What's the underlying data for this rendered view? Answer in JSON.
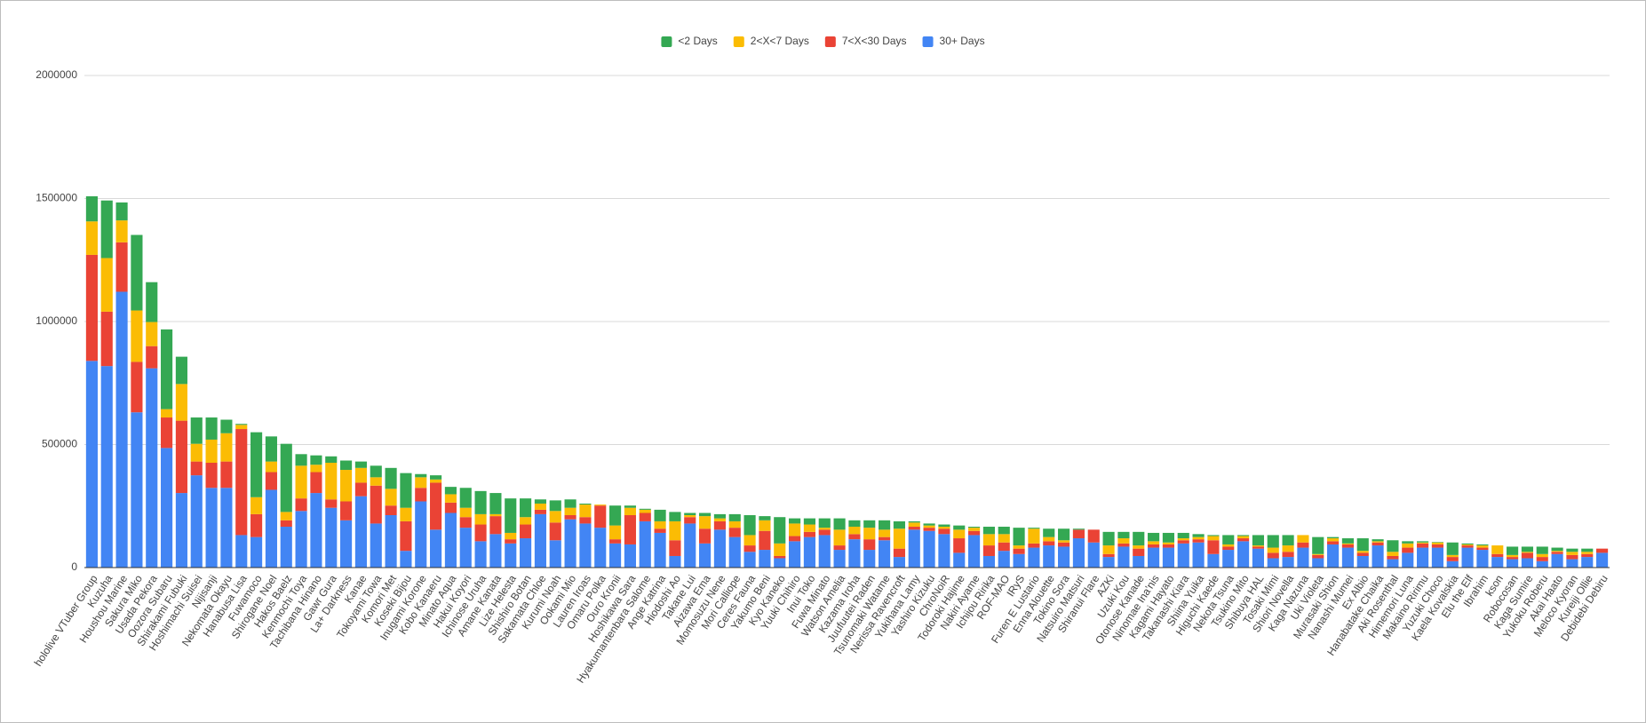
{
  "chart_data": {
    "type": "stacked_bar",
    "categories": [
      "hololive VTuber Group",
      "Kuzuha",
      "Houshou Marine",
      "Sakura Miko",
      "Usada Pekora",
      "Oozora Subaru",
      "Shirakami Fubuki",
      "Hoshimachi Suisei",
      "Nijisanji",
      "Nekomata Okayu",
      "Hanabusa Lisa",
      "Fuwamoco",
      "Shirogane Noel",
      "Hakos Baelz",
      "Kenmochi Toya",
      "Tachibana Hinano",
      "Gawr Gura",
      "La+ Darkness",
      "Kanae",
      "Tokoyami Towa",
      "Komori Met",
      "Koseki Bijou",
      "Inugami Korone",
      "Kobo Kanaeru",
      "Minato Aqua",
      "Hakui Koyori",
      "Ichinose Uruha",
      "Amane Kanata",
      "Lize Helesta",
      "Shishiro Botan",
      "Sakamata Chloe",
      "Kurumi Noah",
      "Ookami Mio",
      "Lauren Iroas",
      "Omaru Polka",
      "Ouro Kronii",
      "Hoshikawa Sara",
      "Hyakumantenbara Salome",
      "Ange Katrina",
      "Hiodoshi Ao",
      "Takane Lui",
      "Aizawa Ema",
      "Momosuzu Nene",
      "Mori Calliope",
      "Ceres Fauna",
      "Yakumo Beni",
      "Kyo Kaneko",
      "Yuuki Chihiro",
      "Inui Toko",
      "Fuwa Minato",
      "Watson Amelia",
      "Kazama Iroha",
      "Juufuutei Raden",
      "Tsunomaki Watame",
      "Nerissa Ravencroft",
      "Yukihana Lamy",
      "Yashiro Kizuku",
      "ChroNoiR",
      "Todoroki Hajime",
      "Nakiri Ayame",
      "Ichijou Ririka",
      "ROF-MAO",
      "IRyS",
      "Furen E Lustario",
      "Enna Alouette",
      "Tokino Sora",
      "Natsuiro Matsuri",
      "Shiranui Flare",
      "AZKi",
      "Uzuki Kou",
      "Otonose Kanade",
      "Ninomae Ina'nis",
      "Kagami Hayato",
      "Takanashi Kiara",
      "Shiina Yuika",
      "Higuchi Kaede",
      "Nekota Tsuna",
      "Tsukino Mito",
      "Shibuya HAL",
      "Tosaki Mimi",
      "Shiori Novella",
      "Kaga Nazuna",
      "Uki Violeta",
      "Murasaki Shion",
      "Nanashi Mumei",
      "Ex Albio",
      "Hanabatake Chaika",
      "Aki Rosenthal",
      "Himemori Luna",
      "Makaino Ririmu",
      "Yuzuki Choco",
      "Kaela Kovalskia",
      "Elu the Elf",
      "Ibrahim",
      "kson",
      "Robocosan",
      "Kaga Sumire",
      "Yukoku Roberu",
      "Akai Haato",
      "Meloco Kyoran",
      "Kureiji Ollie",
      "Debidebi Debiru"
    ],
    "series": [
      {
        "name": "<2 Days",
        "color": "#34a853",
        "values": [
          102000,
          234000,
          73000,
          307000,
          162000,
          324000,
          111000,
          107000,
          90000,
          55000,
          4000,
          264000,
          102000,
          277000,
          47000,
          38000,
          26000,
          38000,
          26000,
          47000,
          85000,
          141000,
          13000,
          17000,
          30000,
          81000,
          94000,
          86000,
          140000,
          76000,
          17000,
          43000,
          34000,
          4000,
          0,
          81000,
          9000,
          4000,
          47000,
          38000,
          9000,
          13000,
          17000,
          29000,
          81000,
          17000,
          107000,
          21000,
          25000,
          38000,
          46000,
          26000,
          30000,
          38000,
          30000,
          5000,
          8000,
          9000,
          17000,
          4000,
          30000,
          30000,
          72000,
          4000,
          34000,
          47000,
          4000,
          0,
          55000,
          26000,
          55000,
          34000,
          39000,
          22000,
          12000,
          4000,
          38000,
          4000,
          42000,
          51000,
          42000,
          0,
          69000,
          5000,
          21000,
          51000,
          8000,
          47000,
          9000,
          5000,
          2000,
          51000,
          4000,
          4000,
          0,
          34000,
          21000,
          30000,
          13000,
          13000,
          13000,
          0
        ]
      },
      {
        "name": "2<X<7 Days",
        "color": "#fbbc04",
        "values": [
          136000,
          218000,
          89000,
          209000,
          98000,
          34000,
          149000,
          72000,
          94000,
          115000,
          17000,
          69000,
          43000,
          34000,
          133000,
          30000,
          149000,
          128000,
          60000,
          34000,
          68000,
          55000,
          43000,
          13000,
          34000,
          38000,
          42000,
          8000,
          26000,
          30000,
          25000,
          47000,
          30000,
          51000,
          4000,
          56000,
          30000,
          13000,
          30000,
          77000,
          8000,
          51000,
          12000,
          26000,
          42000,
          43000,
          51000,
          51000,
          30000,
          8000,
          64000,
          30000,
          47000,
          30000,
          81000,
          17000,
          9000,
          8000,
          35000,
          13000,
          46000,
          34000,
          13000,
          60000,
          17000,
          9000,
          0,
          0,
          35000,
          21000,
          13000,
          13000,
          8000,
          8000,
          9000,
          17000,
          9000,
          9000,
          5000,
          21000,
          26000,
          30000,
          4000,
          12000,
          4000,
          8000,
          5000,
          17000,
          17000,
          4000,
          8000,
          8000,
          4000,
          9000,
          35000,
          8000,
          4000,
          12000,
          4000,
          13000,
          9000,
          0
        ]
      },
      {
        "name": "7<X<30 Days",
        "color": "#ea4335",
        "values": [
          431000,
          221000,
          201000,
          205000,
          90000,
          124000,
          294000,
          56000,
          102000,
          107000,
          431000,
          93000,
          72000,
          26000,
          51000,
          85000,
          34000,
          77000,
          55000,
          154000,
          39000,
          120000,
          55000,
          191000,
          42000,
          43000,
          68000,
          73000,
          17000,
          56000,
          18000,
          72000,
          17000,
          26000,
          90000,
          17000,
          119000,
          34000,
          17000,
          64000,
          26000,
          60000,
          34000,
          38000,
          26000,
          77000,
          9000,
          21000,
          21000,
          22000,
          18000,
          21000,
          43000,
          13000,
          34000,
          12000,
          13000,
          22000,
          59000,
          17000,
          43000,
          34000,
          22000,
          17000,
          17000,
          17000,
          35000,
          52000,
          12000,
          13000,
          30000,
          13000,
          13000,
          13000,
          13000,
          56000,
          13000,
          12000,
          8000,
          22000,
          21000,
          21000,
          13000,
          13000,
          13000,
          13000,
          12000,
          13000,
          21000,
          17000,
          13000,
          17000,
          9000,
          9000,
          12000,
          9000,
          22000,
          17000,
          9000,
          17000,
          12000,
          17000
        ]
      },
      {
        "name": "30+ Days",
        "color": "#4285f4",
        "values": [
          840000,
          819000,
          1121000,
          631000,
          810000,
          486000,
          303000,
          375000,
          324000,
          324000,
          132000,
          124000,
          316000,
          166000,
          230000,
          303000,
          243000,
          192000,
          290000,
          179000,
          213000,
          68000,
          269000,
          154000,
          222000,
          162000,
          107000,
          136000,
          98000,
          119000,
          217000,
          111000,
          196000,
          179000,
          162000,
          98000,
          94000,
          188000,
          141000,
          47000,
          179000,
          98000,
          154000,
          124000,
          64000,
          72000,
          38000,
          107000,
          124000,
          132000,
          72000,
          115000,
          72000,
          111000,
          43000,
          154000,
          149000,
          136000,
          60000,
          132000,
          47000,
          68000,
          55000,
          81000,
          90000,
          85000,
          119000,
          102000,
          43000,
          85000,
          47000,
          81000,
          81000,
          98000,
          102000,
          55000,
          72000,
          107000,
          77000,
          38000,
          43000,
          81000,
          38000,
          94000,
          81000,
          47000,
          90000,
          34000,
          60000,
          81000,
          81000,
          26000,
          81000,
          72000,
          43000,
          34000,
          38000,
          26000,
          55000,
          34000,
          43000,
          60000
        ]
      }
    ],
    "ylim": [
      0,
      2000000
    ],
    "yticks": [
      0,
      500000,
      1000000,
      1500000,
      2000000
    ],
    "grid": true,
    "legend": "top"
  }
}
